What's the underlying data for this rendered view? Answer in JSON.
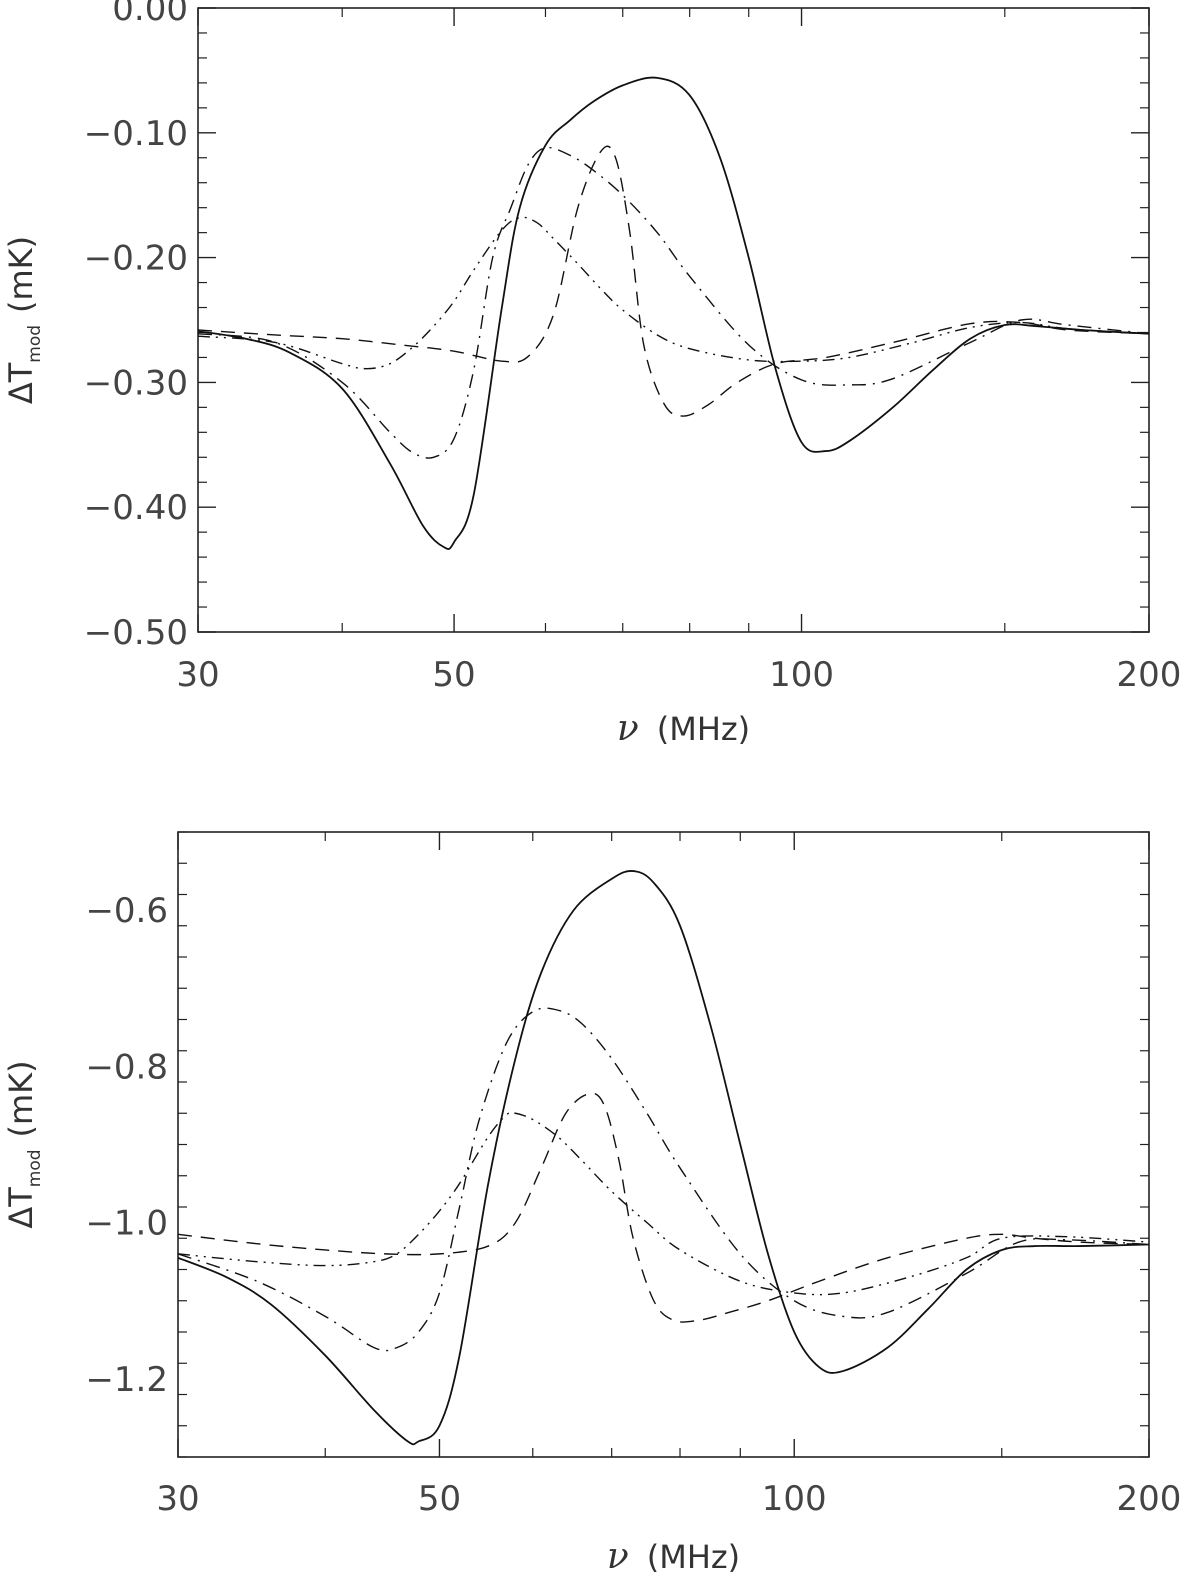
{
  "chart_data": [
    {
      "type": "line",
      "x_scale": "log",
      "xlim": [
        30,
        200
      ],
      "ylim": [
        -0.5,
        0.0
      ],
      "x_ticks": [
        "30",
        "50",
        "100",
        "200"
      ],
      "y_ticks": [
        "0.00",
        "−0.10",
        "−0.20",
        "−0.30",
        "−0.40",
        "−0.50"
      ],
      "xlabel_symbol": "ν",
      "xlabel_unit": "(MHz)",
      "ylabel_main": "ΔT",
      "ylabel_sub": "mod",
      "ylabel_unit": "(mK)",
      "series": [
        {
          "style": "solid",
          "x": [
            30,
            33,
            36,
            40,
            44,
            47,
            49,
            50,
            52,
            55,
            57,
            60,
            63,
            66,
            70,
            75,
            80,
            85,
            90,
            95,
            100,
            105,
            110,
            120,
            130,
            140,
            150,
            160,
            175,
            200
          ],
          "y": [
            -0.259,
            -0.265,
            -0.276,
            -0.305,
            -0.365,
            -0.415,
            -0.432,
            -0.428,
            -0.39,
            -0.24,
            -0.16,
            -0.11,
            -0.09,
            -0.075,
            -0.062,
            -0.056,
            -0.07,
            -0.12,
            -0.2,
            -0.29,
            -0.348,
            -0.355,
            -0.347,
            -0.32,
            -0.29,
            -0.265,
            -0.254,
            -0.255,
            -0.258,
            -0.261
          ]
        },
        {
          "style": "dashed",
          "x": [
            30,
            35,
            40,
            45,
            50,
            55,
            58,
            61,
            64,
            67,
            69,
            71,
            73,
            76,
            79,
            83,
            88,
            95,
            105,
            120,
            140,
            155,
            170,
            200
          ],
          "y": [
            -0.258,
            -0.262,
            -0.265,
            -0.27,
            -0.275,
            -0.283,
            -0.279,
            -0.245,
            -0.16,
            -0.115,
            -0.12,
            -0.18,
            -0.27,
            -0.317,
            -0.327,
            -0.318,
            -0.3,
            -0.285,
            -0.28,
            -0.268,
            -0.253,
            -0.252,
            -0.258,
            -0.261
          ]
        },
        {
          "style": "dash-dot",
          "x": [
            30,
            35,
            40,
            44,
            46,
            48,
            50,
            52,
            54,
            56,
            58,
            60,
            63,
            66,
            70,
            75,
            80,
            90,
            100,
            110,
            120,
            140,
            155,
            170,
            200
          ],
          "y": [
            -0.261,
            -0.268,
            -0.3,
            -0.34,
            -0.356,
            -0.36,
            -0.345,
            -0.29,
            -0.2,
            -0.16,
            -0.125,
            -0.112,
            -0.118,
            -0.13,
            -0.15,
            -0.18,
            -0.215,
            -0.27,
            -0.298,
            -0.302,
            -0.297,
            -0.268,
            -0.25,
            -0.254,
            -0.261
          ]
        },
        {
          "style": "dash-dot-dot",
          "x": [
            30,
            35,
            40,
            42,
            44,
            46,
            48,
            50,
            52,
            55,
            57,
            59,
            61,
            64,
            67,
            70,
            75,
            80,
            90,
            100,
            110,
            125,
            140,
            155,
            170,
            200
          ],
          "y": [
            -0.263,
            -0.268,
            -0.285,
            -0.289,
            -0.285,
            -0.272,
            -0.255,
            -0.235,
            -0.21,
            -0.178,
            -0.168,
            -0.172,
            -0.185,
            -0.205,
            -0.225,
            -0.242,
            -0.262,
            -0.273,
            -0.282,
            -0.283,
            -0.28,
            -0.268,
            -0.256,
            -0.252,
            -0.257,
            -0.261
          ]
        }
      ]
    },
    {
      "type": "line",
      "x_scale": "log",
      "xlim": [
        30,
        200
      ],
      "ylim": [
        -1.3,
        -0.5
      ],
      "x_ticks": [
        "30",
        "50",
        "100",
        "200"
      ],
      "y_ticks": [
        "−0.6",
        "−0.8",
        "−1.0",
        "−1.2"
      ],
      "xlabel_symbol": "ν",
      "xlabel_unit": "(MHz)",
      "ylabel_main": "ΔT",
      "ylabel_sub": "mod",
      "ylabel_unit": "(mK)",
      "series": [
        {
          "style": "solid",
          "x": [
            30,
            33,
            36,
            40,
            44,
            47,
            48,
            50,
            52,
            55,
            58,
            61,
            65,
            70,
            73,
            76,
            80,
            85,
            90,
            95,
            100,
            105,
            110,
            120,
            130,
            140,
            150,
            160,
            175,
            200
          ],
          "y": [
            -1.045,
            -1.07,
            -1.105,
            -1.17,
            -1.24,
            -1.28,
            -1.28,
            -1.26,
            -1.17,
            -0.95,
            -0.79,
            -0.68,
            -0.6,
            -0.56,
            -0.55,
            -0.565,
            -0.62,
            -0.75,
            -0.9,
            -1.04,
            -1.14,
            -1.185,
            -1.19,
            -1.16,
            -1.11,
            -1.06,
            -1.035,
            -1.03,
            -1.03,
            -1.028
          ]
        },
        {
          "style": "dashed",
          "x": [
            30,
            35,
            40,
            45,
            50,
            55,
            58,
            61,
            64,
            67,
            69,
            71,
            73,
            76,
            79,
            83,
            88,
            95,
            105,
            120,
            140,
            150,
            160,
            175,
            200
          ],
          "y": [
            -1.015,
            -1.027,
            -1.035,
            -1.04,
            -1.04,
            -1.03,
            -1.0,
            -0.93,
            -0.86,
            -0.835,
            -0.85,
            -0.92,
            -1.02,
            -1.1,
            -1.125,
            -1.125,
            -1.115,
            -1.1,
            -1.075,
            -1.045,
            -1.02,
            -1.015,
            -1.02,
            -1.025,
            -1.028
          ]
        },
        {
          "style": "dash-dot",
          "x": [
            30,
            35,
            40,
            44,
            46,
            48,
            50,
            52,
            54,
            57,
            60,
            63,
            66,
            70,
            75,
            80,
            90,
            100,
            110,
            120,
            140,
            155,
            170,
            200
          ],
          "y": [
            -1.04,
            -1.075,
            -1.12,
            -1.16,
            -1.16,
            -1.14,
            -1.09,
            -0.98,
            -0.87,
            -0.77,
            -0.73,
            -0.728,
            -0.745,
            -0.79,
            -0.86,
            -0.93,
            -1.04,
            -1.1,
            -1.12,
            -1.115,
            -1.065,
            -1.025,
            -1.022,
            -1.028
          ]
        },
        {
          "style": "dash-dot-dot",
          "x": [
            30,
            35,
            40,
            44,
            46,
            48,
            50,
            52,
            55,
            57,
            58,
            60,
            63,
            66,
            70,
            75,
            80,
            90,
            100,
            110,
            125,
            140,
            150,
            170,
            200
          ],
          "y": [
            -1.04,
            -1.05,
            -1.055,
            -1.05,
            -1.04,
            -1.015,
            -0.985,
            -0.95,
            -0.89,
            -0.862,
            -0.86,
            -0.868,
            -0.89,
            -0.92,
            -0.96,
            -1.0,
            -1.035,
            -1.075,
            -1.09,
            -1.09,
            -1.07,
            -1.045,
            -1.02,
            -1.018,
            -1.025
          ]
        }
      ]
    }
  ]
}
